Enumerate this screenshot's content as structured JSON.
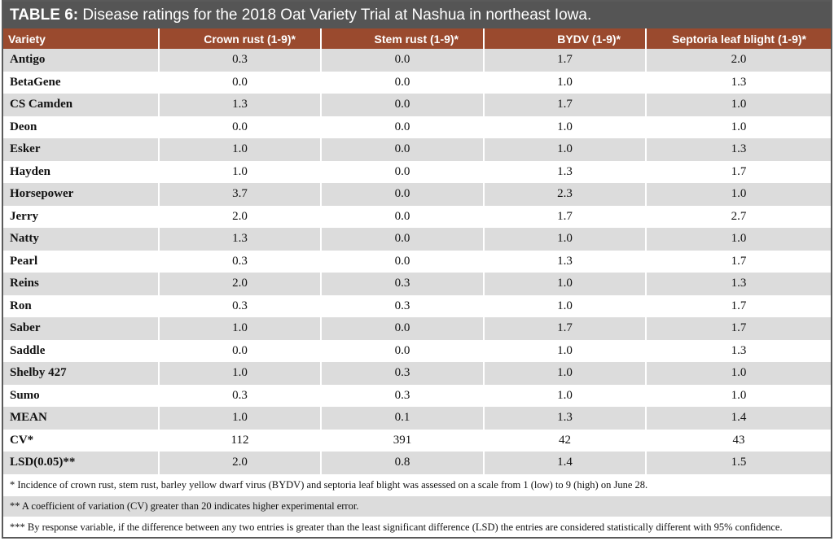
{
  "title": {
    "label": "TABLE 6:",
    "text": "Disease ratings for the 2018 Oat Variety Trial at Nashua in northeast Iowa."
  },
  "table": {
    "columns": [
      "Variety",
      "Crown rust (1-9)*",
      "Stem rust (1-9)*",
      "BYDV (1-9)*",
      "Septoria leaf blight (1-9)*"
    ],
    "rows": [
      [
        "Antigo",
        "0.3",
        "0.0",
        "1.7",
        "2.0"
      ],
      [
        "BetaGene",
        "0.0",
        "0.0",
        "1.0",
        "1.3"
      ],
      [
        "CS Camden",
        "1.3",
        "0.0",
        "1.7",
        "1.0"
      ],
      [
        "Deon",
        "0.0",
        "0.0",
        "1.0",
        "1.0"
      ],
      [
        "Esker",
        "1.0",
        "0.0",
        "1.0",
        "1.3"
      ],
      [
        "Hayden",
        "1.0",
        "0.0",
        "1.3",
        "1.7"
      ],
      [
        "Horsepower",
        "3.7",
        "0.0",
        "2.3",
        "1.0"
      ],
      [
        "Jerry",
        "2.0",
        "0.0",
        "1.7",
        "2.7"
      ],
      [
        "Natty",
        "1.3",
        "0.0",
        "1.0",
        "1.0"
      ],
      [
        "Pearl",
        "0.3",
        "0.0",
        "1.3",
        "1.7"
      ],
      [
        "Reins",
        "2.0",
        "0.3",
        "1.0",
        "1.3"
      ],
      [
        "Ron",
        "0.3",
        "0.3",
        "1.0",
        "1.7"
      ],
      [
        "Saber",
        "1.0",
        "0.0",
        "1.7",
        "1.7"
      ],
      [
        "Saddle",
        "0.0",
        "0.0",
        "1.0",
        "1.3"
      ],
      [
        "Shelby 427",
        "1.0",
        "0.3",
        "1.0",
        "1.0"
      ],
      [
        "Sumo",
        "0.3",
        "0.3",
        "1.0",
        "1.0"
      ],
      [
        "MEAN",
        "1.0",
        "0.1",
        "1.3",
        "1.4"
      ],
      [
        "CV*",
        "112",
        "391",
        "42",
        "43"
      ],
      [
        "LSD(0.05)**",
        "2.0",
        "0.8",
        "1.4",
        "1.5"
      ]
    ],
    "notes": [
      "* Incidence of crown rust, stem rust, barley yellow dwarf virus (BYDV) and septoria leaf blight was assessed on a scale from 1 (low) to 9 (high) on June 28.",
      "** A coefficient of variation (CV) greater than 20 indicates higher experimental error.",
      "*** By response variable, if the difference between any two entries is greater than the least significant difference (LSD) the entries are considered statistically different with 95% confidence."
    ]
  }
}
